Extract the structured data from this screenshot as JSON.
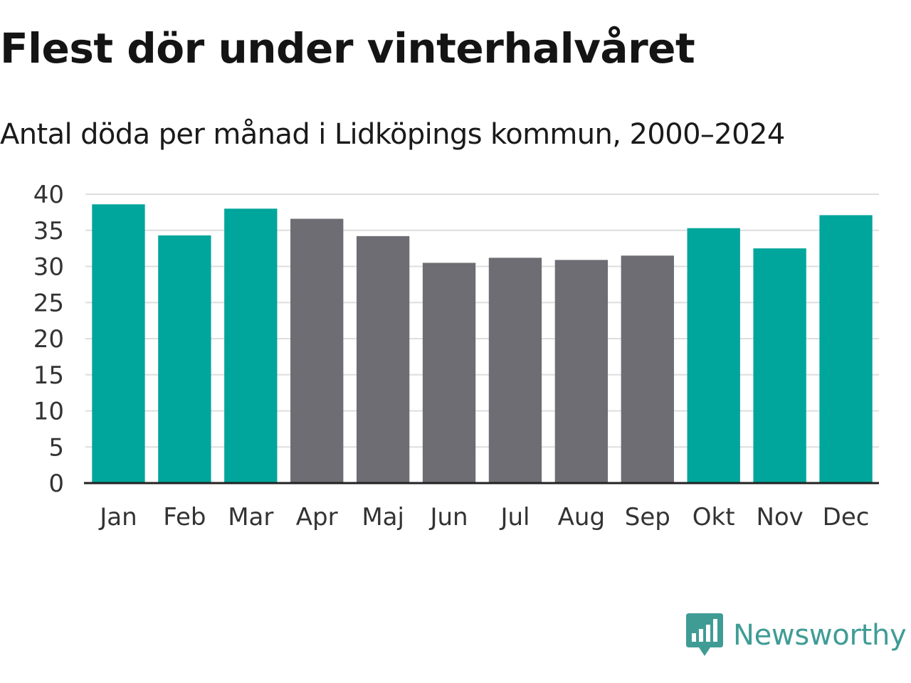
{
  "chart_data": {
    "type": "bar",
    "title": "Flest dör under vinterhalvåret",
    "subtitle": "Antal döda per månad i Lidköpings kommun, 2000–2024",
    "categories": [
      "Jan",
      "Feb",
      "Mar",
      "Apr",
      "Maj",
      "Jun",
      "Jul",
      "Aug",
      "Sep",
      "Okt",
      "Nov",
      "Dec"
    ],
    "values": [
      38.6,
      34.3,
      38.0,
      36.6,
      34.2,
      30.5,
      31.2,
      30.9,
      31.5,
      35.3,
      32.5,
      37.1
    ],
    "highlight": [
      true,
      true,
      true,
      false,
      false,
      false,
      false,
      false,
      false,
      true,
      true,
      true
    ],
    "ylim": [
      0,
      40
    ],
    "yticks": [
      0,
      5,
      10,
      15,
      20,
      25,
      30,
      35,
      40
    ],
    "xlabel": "",
    "ylabel": "",
    "grid": true,
    "colors": {
      "winter": "#00a59b",
      "summer": "#6e6d73",
      "grid": "#dedede",
      "axis": "#222222"
    }
  },
  "brand": {
    "name": "Newsworthy",
    "logo_icon": "newsworthy-logo-icon",
    "color": "#3f9c95"
  }
}
